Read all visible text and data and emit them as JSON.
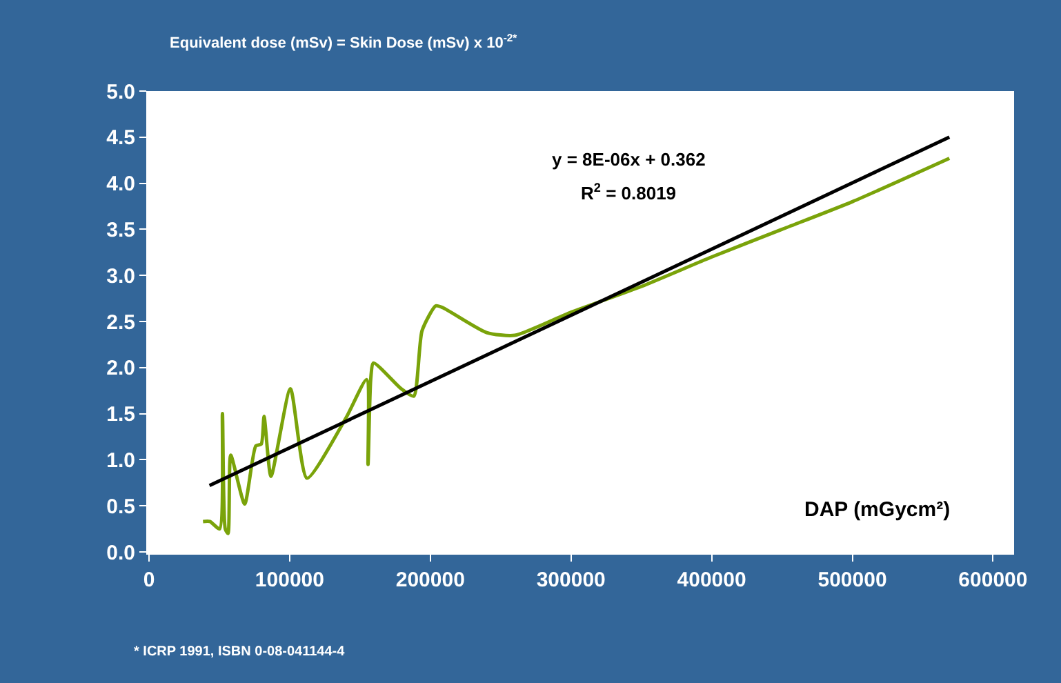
{
  "chart_data": {
    "type": "line",
    "title": "Equivalent dose (mSv) = Skin Dose (mSv) x 10$^{-2*}$",
    "xlabel": "DAP (mGycm²)",
    "xlim": [
      0,
      615000
    ],
    "xticks": [
      0,
      100000,
      200000,
      300000,
      400000,
      500000,
      600000
    ],
    "ylim": [
      0,
      5
    ],
    "yticks": [
      {
        "value": 0,
        "label": "0.0"
      },
      {
        "value": 0.5,
        "label": "0.5"
      },
      {
        "value": 1,
        "label": "1.0"
      },
      {
        "value": 1.5,
        "label": "1.5"
      },
      {
        "value": 2,
        "label": "2.0"
      },
      {
        "value": 2.5,
        "label": "2.5"
      },
      {
        "value": 3,
        "label": "3.0"
      },
      {
        "value": 3.5,
        "label": "3.5"
      },
      {
        "value": 4,
        "label": "4.0"
      },
      {
        "value": 4.5,
        "label": "4.5"
      },
      {
        "value": 5,
        "label": "5.0"
      }
    ],
    "marker": "none",
    "line_style": "solid",
    "series": [
      {
        "color": "#7aa30a",
        "x": [
          38400,
          43300,
          50200,
          52200,
          54200,
          56200,
          58100,
          68000,
          75900,
          79800,
          81800,
          86700,
          100500,
          112300,
          139900,
          154700,
          155700,
          157600,
          159600,
          179300,
          188200,
          194100,
          203900,
          208900,
          240000,
          260000,
          300000,
          350000,
          400000,
          450000,
          500000,
          569000
        ],
        "values": [
          0.33,
          0.33,
          0.25,
          1.5,
          0.25,
          0.2,
          1.05,
          0.52,
          1.15,
          1.17,
          1.47,
          0.82,
          1.77,
          0.8,
          1.45,
          1.87,
          0.95,
          1.87,
          2.05,
          1.77,
          1.69,
          2.4,
          2.67,
          2.65,
          2.38,
          2.35,
          2.6,
          2.88,
          3.2,
          3.5,
          3.8,
          4.27
        ]
      },
      {
        "color": "#000000",
        "x": [
          43000,
          569000
        ],
        "values": [
          0.72,
          4.5
        ]
      }
    ],
    "annotations": [
      "y = 8E-06x + 0.362",
      "R$^{2}$ = 0.8019",
      "* ICRP 1991, ISBN 0-08-041144-4"
    ]
  }
}
